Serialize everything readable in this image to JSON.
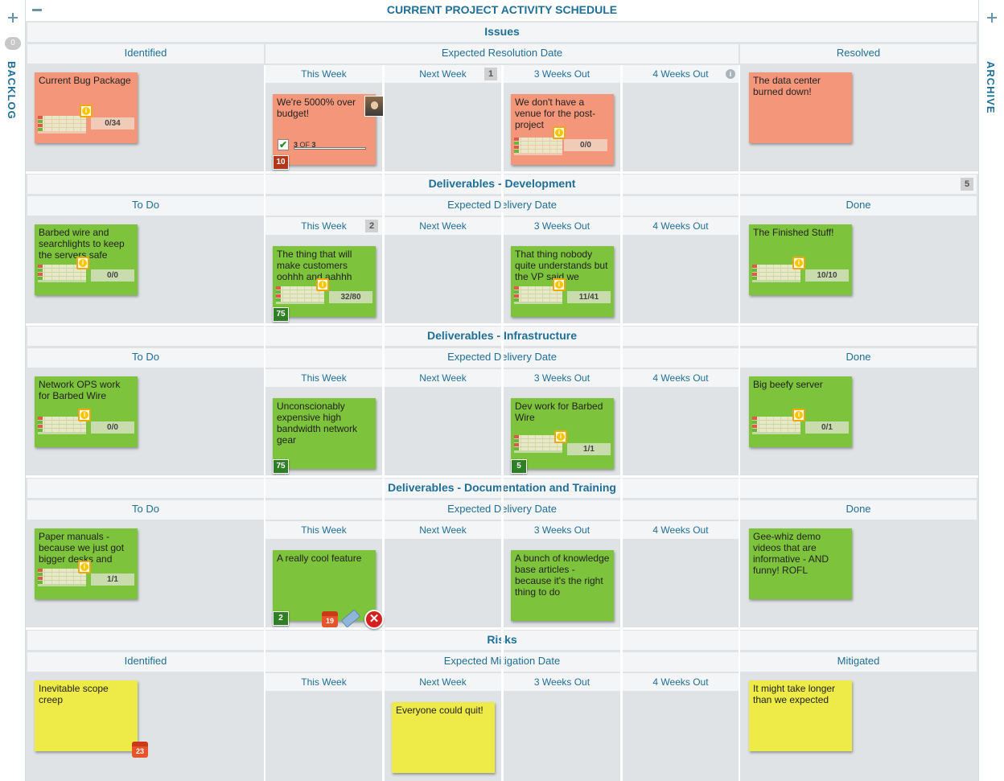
{
  "board_title": "CURRENT PROJECT ACTIVITY SCHEDULE",
  "sidebar": {
    "backlog_label": "BACKLOG",
    "backlog_count": "0",
    "archive_label": "ARCHIVE"
  },
  "lanes": [
    {
      "title": "Issues",
      "left_header": "Identified",
      "mid_header": "Expected Resolution Date",
      "right_header": "Resolved",
      "columns": [
        "This Week",
        "Next Week",
        "3 Weeks Out",
        "4 Weeks Out"
      ],
      "next_week_count": "1"
    },
    {
      "title": "Deliverables - Development",
      "title_count": "5",
      "left_header": "To Do",
      "mid_header": "Expected Delivery Date",
      "right_header": "Done",
      "columns": [
        "This Week",
        "Next Week",
        "3 Weeks Out",
        "4 Weeks Out"
      ],
      "this_week_count": "2"
    },
    {
      "title": "Deliverables - Infrastructure",
      "left_header": "To Do",
      "mid_header": "Expected Delivery Date",
      "right_header": "Done",
      "columns": [
        "This Week",
        "Next Week",
        "3 Weeks Out",
        "4 Weeks Out"
      ]
    },
    {
      "title": "Deliverables - Documentation and Training",
      "left_header": "To Do",
      "mid_header": "Expected Delivery Date",
      "right_header": "Done",
      "columns": [
        "This Week",
        "Next Week",
        "3 Weeks Out",
        "4 Weeks Out"
      ]
    },
    {
      "title": "Risks",
      "left_header": "Identified",
      "mid_header": "Expected Mitigation Date",
      "right_header": "Mitigated",
      "columns": [
        "This Week",
        "Next Week",
        "3 Weeks Out",
        "4 Weeks Out"
      ]
    }
  ],
  "cards": {
    "c1": {
      "text": "Current Bug Package",
      "progress": "0/34"
    },
    "c2": {
      "text": "We're 5000% over budget!",
      "checklist_done": "3",
      "checklist_of": "OF",
      "checklist_total": "3",
      "points": "10"
    },
    "c3": {
      "text": "We don't have a venue for the post-project",
      "progress": "0/0"
    },
    "c4": {
      "text": "The data center burned down!"
    },
    "c5": {
      "text": "Barbed wire and searchlights to keep the servers safe",
      "progress": "0/0"
    },
    "c6": {
      "text": "The thing that will make customers oohhh and aahhh",
      "progress": "32/80",
      "points": "75"
    },
    "c7": {
      "text": "That thing nobody quite understands but the VP said we",
      "progress": "11/41"
    },
    "c8": {
      "text": "The Finished Stuff!",
      "progress": "10/10"
    },
    "c9": {
      "text": "Network OPS work for Barbed Wire",
      "progress": "0/0"
    },
    "c10": {
      "text": "Unconscionably expensive high bandwidth network gear",
      "points": "75"
    },
    "c11": {
      "text": "Dev work for Barbed Wire",
      "progress": "1/1",
      "points": "5"
    },
    "c12": {
      "text": "Big beefy server",
      "progress": "0/1"
    },
    "c13": {
      "text": "Paper manuals - because we just got bigger desks and",
      "progress": "1/1"
    },
    "c14": {
      "text": "A really cool feature",
      "points": "2",
      "due_day": "19"
    },
    "c15": {
      "text": "A bunch of knowledge base articles - because it's the right thing to do"
    },
    "c16": {
      "text": "Gee-whiz demo videos that are informative - AND funny! ROFL"
    },
    "c17": {
      "text": "Inevitable scope creep",
      "due_day": "23"
    },
    "c18": {
      "text": "Everyone could quit!"
    },
    "c19": {
      "text": "It might take longer than we expected"
    }
  },
  "icons": {
    "info_glyph": "i",
    "check_glyph": "✔",
    "close_glyph": "✕"
  },
  "colors": {
    "accent": "#1f6f98",
    "card_orange": "#f4967a",
    "card_green": "#7dc33b",
    "card_yellow": "#eeea47"
  }
}
